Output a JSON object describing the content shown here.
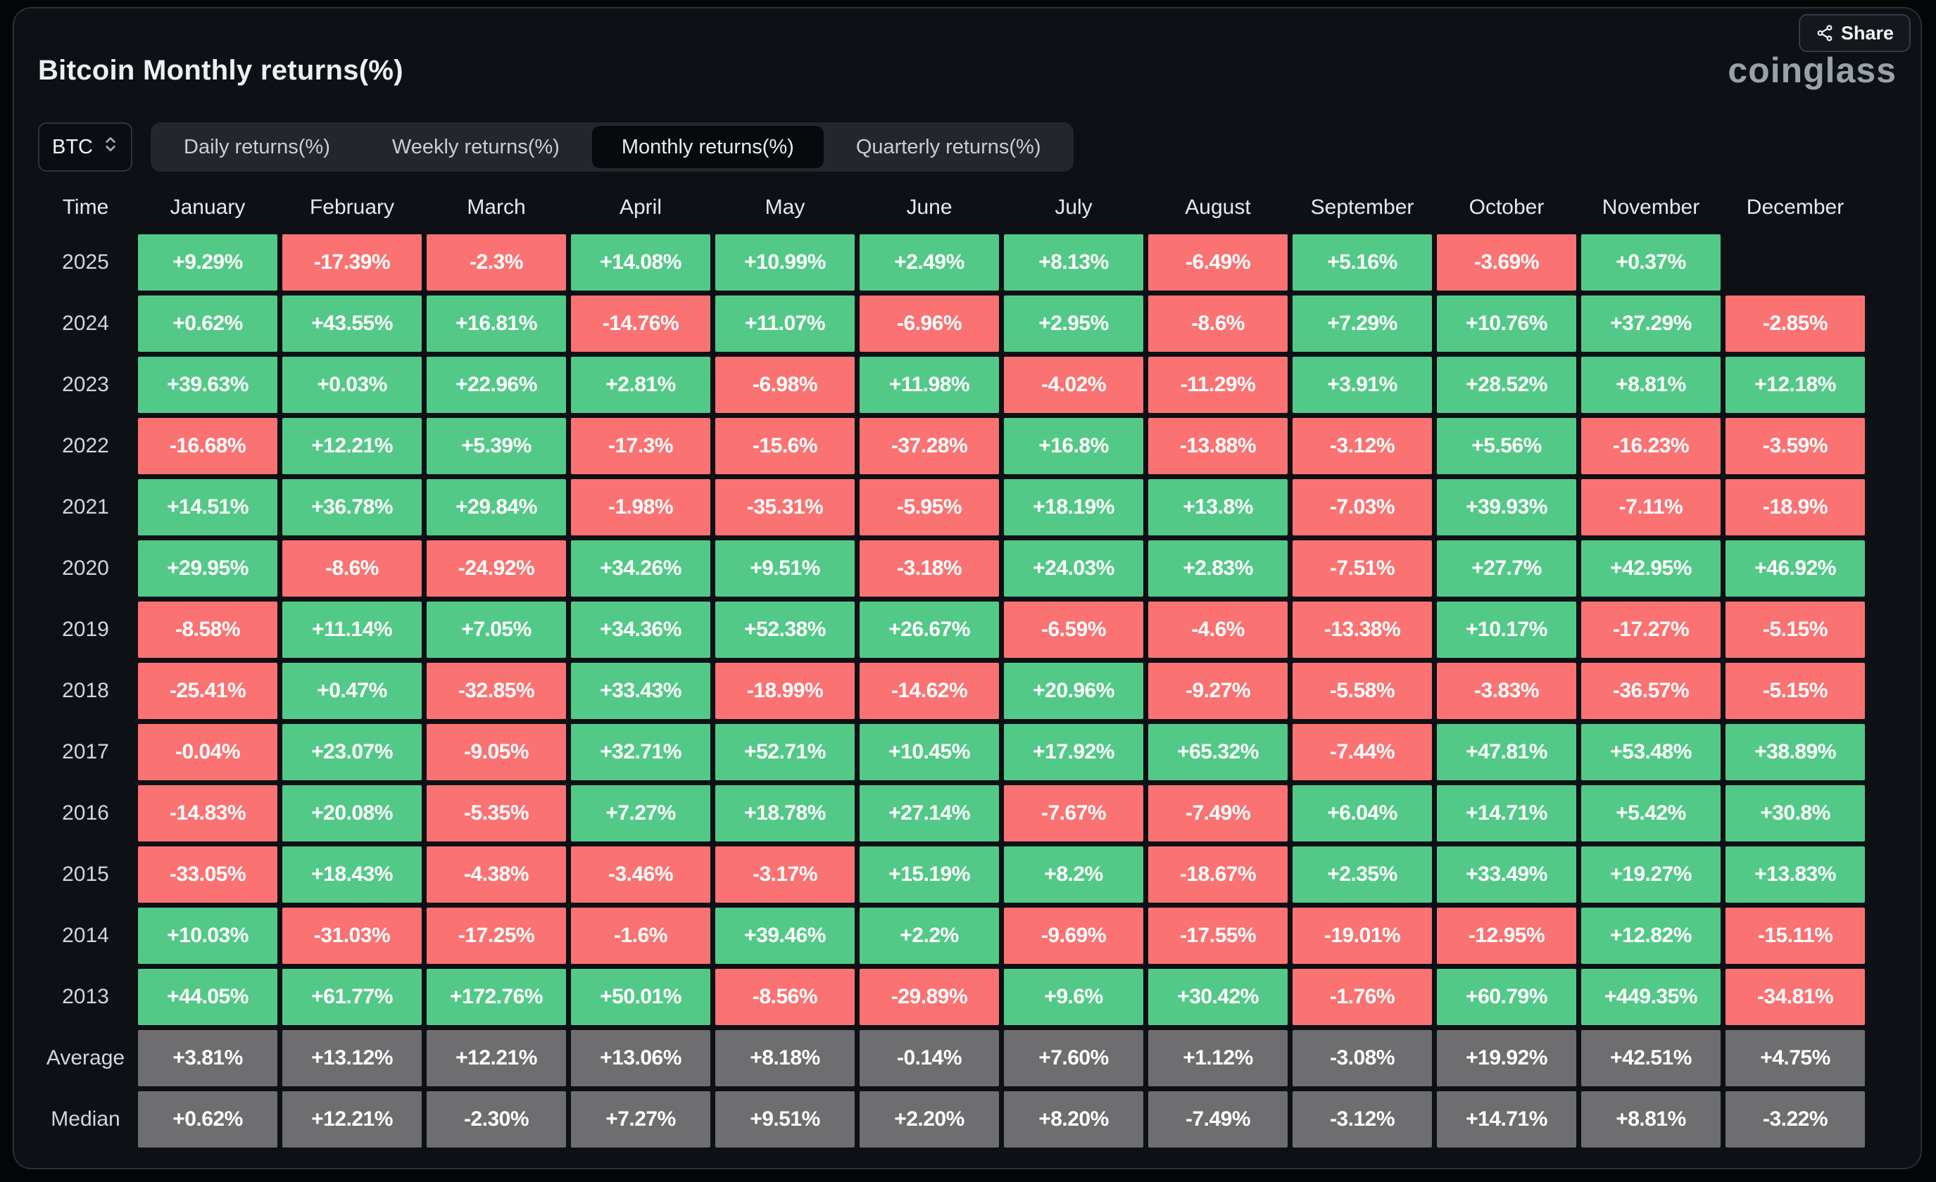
{
  "header": {
    "title": "Bitcoin Monthly returns(%)",
    "logo": "coinglass",
    "share_label": "Share",
    "coin_selector": "BTC",
    "tabs": [
      {
        "label": "Daily returns(%)",
        "active": false
      },
      {
        "label": "Weekly returns(%)",
        "active": false
      },
      {
        "label": "Monthly returns(%)",
        "active": true
      },
      {
        "label": "Quarterly returns(%)",
        "active": false
      }
    ]
  },
  "colors": {
    "positive": "#53c987",
    "negative": "#fa7272",
    "summary": "#6e6e70",
    "panel_background": "#0d1015"
  },
  "table": {
    "time_header": "Time",
    "months": [
      "January",
      "February",
      "March",
      "April",
      "May",
      "June",
      "July",
      "August",
      "September",
      "October",
      "November",
      "December"
    ],
    "rows": [
      {
        "label": "2025",
        "type": "year",
        "values": [
          "+9.29%",
          "-17.39%",
          "-2.3%",
          "+14.08%",
          "+10.99%",
          "+2.49%",
          "+8.13%",
          "-6.49%",
          "+5.16%",
          "-3.69%",
          "+0.37%",
          null
        ]
      },
      {
        "label": "2024",
        "type": "year",
        "values": [
          "+0.62%",
          "+43.55%",
          "+16.81%",
          "-14.76%",
          "+11.07%",
          "-6.96%",
          "+2.95%",
          "-8.6%",
          "+7.29%",
          "+10.76%",
          "+37.29%",
          "-2.85%"
        ]
      },
      {
        "label": "2023",
        "type": "year",
        "values": [
          "+39.63%",
          "+0.03%",
          "+22.96%",
          "+2.81%",
          "-6.98%",
          "+11.98%",
          "-4.02%",
          "-11.29%",
          "+3.91%",
          "+28.52%",
          "+8.81%",
          "+12.18%"
        ]
      },
      {
        "label": "2022",
        "type": "year",
        "values": [
          "-16.68%",
          "+12.21%",
          "+5.39%",
          "-17.3%",
          "-15.6%",
          "-37.28%",
          "+16.8%",
          "-13.88%",
          "-3.12%",
          "+5.56%",
          "-16.23%",
          "-3.59%"
        ]
      },
      {
        "label": "2021",
        "type": "year",
        "values": [
          "+14.51%",
          "+36.78%",
          "+29.84%",
          "-1.98%",
          "-35.31%",
          "-5.95%",
          "+18.19%",
          "+13.8%",
          "-7.03%",
          "+39.93%",
          "-7.11%",
          "-18.9%"
        ]
      },
      {
        "label": "2020",
        "type": "year",
        "values": [
          "+29.95%",
          "-8.6%",
          "-24.92%",
          "+34.26%",
          "+9.51%",
          "-3.18%",
          "+24.03%",
          "+2.83%",
          "-7.51%",
          "+27.7%",
          "+42.95%",
          "+46.92%"
        ]
      },
      {
        "label": "2019",
        "type": "year",
        "values": [
          "-8.58%",
          "+11.14%",
          "+7.05%",
          "+34.36%",
          "+52.38%",
          "+26.67%",
          "-6.59%",
          "-4.6%",
          "-13.38%",
          "+10.17%",
          "-17.27%",
          "-5.15%"
        ]
      },
      {
        "label": "2018",
        "type": "year",
        "values": [
          "-25.41%",
          "+0.47%",
          "-32.85%",
          "+33.43%",
          "-18.99%",
          "-14.62%",
          "+20.96%",
          "-9.27%",
          "-5.58%",
          "-3.83%",
          "-36.57%",
          "-5.15%"
        ]
      },
      {
        "label": "2017",
        "type": "year",
        "values": [
          "-0.04%",
          "+23.07%",
          "-9.05%",
          "+32.71%",
          "+52.71%",
          "+10.45%",
          "+17.92%",
          "+65.32%",
          "-7.44%",
          "+47.81%",
          "+53.48%",
          "+38.89%"
        ]
      },
      {
        "label": "2016",
        "type": "year",
        "values": [
          "-14.83%",
          "+20.08%",
          "-5.35%",
          "+7.27%",
          "+18.78%",
          "+27.14%",
          "-7.67%",
          "-7.49%",
          "+6.04%",
          "+14.71%",
          "+5.42%",
          "+30.8%"
        ]
      },
      {
        "label": "2015",
        "type": "year",
        "values": [
          "-33.05%",
          "+18.43%",
          "-4.38%",
          "-3.46%",
          "-3.17%",
          "+15.19%",
          "+8.2%",
          "-18.67%",
          "+2.35%",
          "+33.49%",
          "+19.27%",
          "+13.83%"
        ]
      },
      {
        "label": "2014",
        "type": "year",
        "values": [
          "+10.03%",
          "-31.03%",
          "-17.25%",
          "-1.6%",
          "+39.46%",
          "+2.2%",
          "-9.69%",
          "-17.55%",
          "-19.01%",
          "-12.95%",
          "+12.82%",
          "-15.11%"
        ]
      },
      {
        "label": "2013",
        "type": "year",
        "values": [
          "+44.05%",
          "+61.77%",
          "+172.76%",
          "+50.01%",
          "-8.56%",
          "-29.89%",
          "+9.6%",
          "+30.42%",
          "-1.76%",
          "+60.79%",
          "+449.35%",
          "-34.81%"
        ]
      },
      {
        "label": "Average",
        "type": "summary",
        "values": [
          "+3.81%",
          "+13.12%",
          "+12.21%",
          "+13.06%",
          "+8.18%",
          "-0.14%",
          "+7.60%",
          "+1.12%",
          "-3.08%",
          "+19.92%",
          "+42.51%",
          "+4.75%"
        ]
      },
      {
        "label": "Median",
        "type": "summary",
        "values": [
          "+0.62%",
          "+12.21%",
          "-2.30%",
          "+7.27%",
          "+9.51%",
          "+2.20%",
          "+8.20%",
          "-7.49%",
          "-3.12%",
          "+14.71%",
          "+8.81%",
          "-3.22%"
        ]
      }
    ]
  }
}
